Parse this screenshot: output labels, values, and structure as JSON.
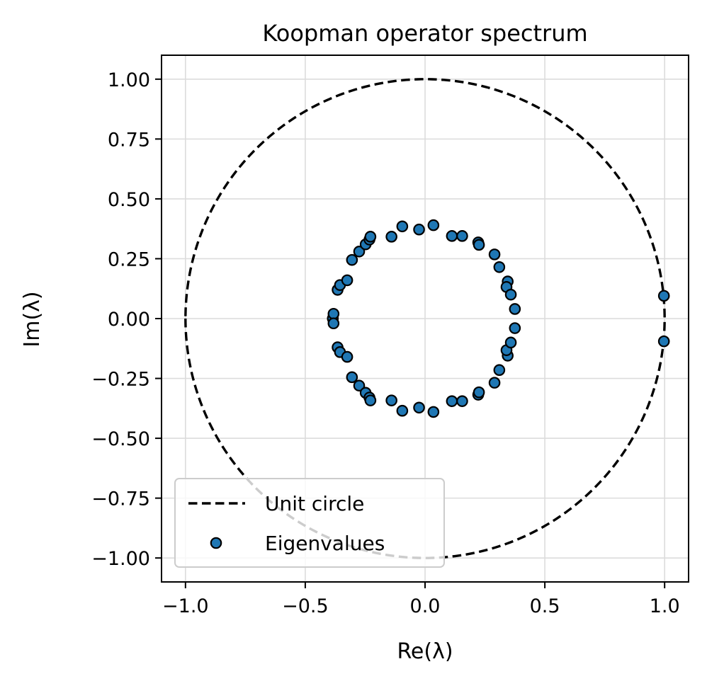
{
  "chart_data": {
    "type": "scatter",
    "title": "Koopman operator spectrum",
    "xlabel": "Re(λ)",
    "ylabel": "Im(λ)",
    "xlim": [
      -1.1,
      1.1
    ],
    "ylim": [
      -1.1,
      1.1
    ],
    "grid": true,
    "legend_position": "lower-left",
    "x_ticks": [
      -1.0,
      -0.5,
      0.0,
      0.5,
      1.0
    ],
    "x_tick_labels": [
      "−1.0",
      "−0.5",
      "0.0",
      "0.5",
      "1.0"
    ],
    "y_ticks": [
      1.0,
      0.75,
      0.5,
      0.25,
      0.0,
      -0.25,
      -0.5,
      -0.75,
      -1.0
    ],
    "y_tick_labels": [
      "1.00",
      "0.75",
      "0.50",
      "0.25",
      "0.00",
      "−0.25",
      "−0.50",
      "−0.75",
      "−1.00"
    ],
    "series": [
      {
        "name": "Unit circle",
        "kind": "line",
        "style": "dashed",
        "color": "#000000",
        "radius": 1.0
      },
      {
        "name": "Eigenvalues",
        "kind": "scatter",
        "color": "#1f77b4",
        "edge_color": "#000000",
        "points": [
          [
            -0.385,
            0.0
          ],
          [
            -0.382,
            0.02
          ],
          [
            -0.382,
            -0.02
          ],
          [
            -0.365,
            0.12
          ],
          [
            -0.365,
            -0.12
          ],
          [
            -0.355,
            0.14
          ],
          [
            -0.355,
            -0.14
          ],
          [
            -0.325,
            0.16
          ],
          [
            -0.325,
            -0.16
          ],
          [
            -0.305,
            0.245
          ],
          [
            -0.305,
            -0.245
          ],
          [
            -0.275,
            0.28
          ],
          [
            -0.275,
            -0.28
          ],
          [
            -0.248,
            0.31
          ],
          [
            -0.248,
            -0.31
          ],
          [
            -0.232,
            0.33
          ],
          [
            -0.232,
            -0.33
          ],
          [
            -0.228,
            0.342
          ],
          [
            -0.228,
            -0.342
          ],
          [
            -0.14,
            0.342
          ],
          [
            -0.14,
            -0.342
          ],
          [
            -0.095,
            0.385
          ],
          [
            -0.095,
            -0.385
          ],
          [
            -0.025,
            0.372
          ],
          [
            -0.025,
            -0.372
          ],
          [
            0.035,
            0.39
          ],
          [
            0.035,
            -0.39
          ],
          [
            0.112,
            0.345
          ],
          [
            0.112,
            -0.345
          ],
          [
            0.155,
            0.345
          ],
          [
            0.155,
            -0.345
          ],
          [
            0.222,
            0.318
          ],
          [
            0.222,
            -0.318
          ],
          [
            0.225,
            0.308
          ],
          [
            0.225,
            -0.308
          ],
          [
            0.29,
            0.268
          ],
          [
            0.29,
            -0.268
          ],
          [
            0.31,
            0.215
          ],
          [
            0.31,
            -0.215
          ],
          [
            0.345,
            0.155
          ],
          [
            0.345,
            -0.155
          ],
          [
            0.34,
            0.132
          ],
          [
            0.34,
            -0.132
          ],
          [
            0.358,
            0.1
          ],
          [
            0.358,
            -0.1
          ],
          [
            0.375,
            0.04
          ],
          [
            0.375,
            -0.04
          ],
          [
            0.997,
            0.095
          ],
          [
            0.997,
            -0.095
          ]
        ]
      }
    ]
  }
}
